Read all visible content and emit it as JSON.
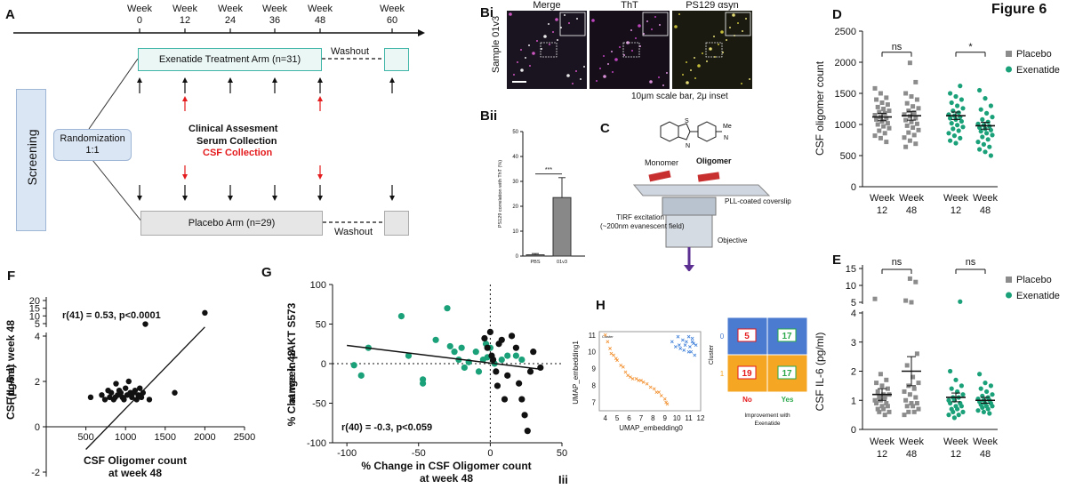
{
  "figure_title": "Figure 6",
  "panels": {
    "A": {
      "letter": "A",
      "weeks": [
        "Week\n0",
        "Week\n12",
        "Week\n24",
        "Week\n36",
        "Week\n48",
        "Week\n60"
      ],
      "treatment_arm": "Exenatide Treatment Arm (n=31)",
      "placebo_arm": "Placebo Arm (n=29)",
      "washout_top": "Washout",
      "washout_bottom": "Washout",
      "screening": "Screening",
      "randomization": "Randomization\n1:1",
      "clinical": "Clinical Assesment",
      "serum": "Serum Collection",
      "csf": "CSF Collection"
    },
    "Bi": {
      "letter": "Bi",
      "sample": "Sample 01v3",
      "headers": [
        "Merge",
        "ThT",
        "PS129 αsyn"
      ],
      "scale_note": "10μm scale bar, 2μ inset"
    },
    "Bii": {
      "letter": "Bii",
      "ylabel": "PS129 correlation with ThT (%)",
      "yticks": [
        "0",
        "10",
        "20",
        "30",
        "40",
        "50"
      ],
      "sig": "***",
      "categories": [
        "PBS",
        "01v3"
      ]
    },
    "C": {
      "letter": "C",
      "monomer": "Monomer",
      "oligomer": "Oligomer",
      "coverslip": "PLL-coated coverslip",
      "tirf": "TIRF excitation\n(~200nm evanescent field)",
      "objective": "Objective"
    },
    "D": {
      "letter": "D",
      "ylabel": "CSF oligomer count",
      "yticks": [
        "0",
        "500",
        "1000",
        "1500",
        "2000",
        "2500"
      ],
      "xticks": [
        "Week\n12",
        "Week\n48",
        "Week\n12",
        "Week\n48"
      ],
      "sig": [
        "ns",
        "*"
      ],
      "legend": [
        "Placebo",
        "Exenatide"
      ]
    },
    "E": {
      "letter": "E",
      "ylabel": "CSF IL-6 (pg/ml)",
      "yticks_low": [
        "0",
        "1",
        "2",
        "3",
        "4"
      ],
      "yticks_high": [
        "5",
        "10",
        "15"
      ],
      "xticks": [
        "Week\n12",
        "Week\n48",
        "Week\n12",
        "Week\n48"
      ],
      "sig": [
        "ns",
        "ns"
      ],
      "legend": [
        "Placebo",
        "Exenatide"
      ]
    },
    "F": {
      "letter": "F",
      "ylabel": "CSF IL-6 at week 48\n(pg/ml)",
      "xlabel": "CSF Oligomer count\nat week 48",
      "stat": "r(41) = 0.53, p<0.0001",
      "xticks": [
        "500",
        "1000",
        "1500",
        "2000",
        "2500"
      ],
      "yticks_low": [
        "-2",
        "0",
        "2",
        "4"
      ],
      "yticks_high": [
        "5",
        "10",
        "15",
        "20"
      ]
    },
    "G": {
      "letter": "G",
      "ylabel": "% Change in pAKT S573\nat week 48",
      "xlabel": "% Change in CSF Oligomer count\nat week 48",
      "stat": "r(40) = -0.3, p<0.059",
      "xticks": [
        "-100",
        "-50",
        "0",
        "50"
      ],
      "yticks": [
        "-100",
        "-50",
        "0",
        "50",
        "100"
      ]
    },
    "H": {
      "letter": "H",
      "ylabel": "UMAP_embedding1",
      "xlabel": "UMAP_embedding0",
      "xticks": [
        "4",
        "5",
        "6",
        "7",
        "8",
        "9",
        "10",
        "11",
        "12"
      ],
      "yticks": [
        "7",
        "8",
        "9",
        "10",
        "11"
      ],
      "legend_title": "Cluster",
      "cluster_label": "Cluster",
      "matrix": [
        [
          "5",
          "17"
        ],
        [
          "19",
          "17"
        ]
      ],
      "row_labels": [
        "0",
        "1"
      ],
      "col_labels": [
        "No",
        "Yes"
      ],
      "improvement": "Improvement with\nExenatide"
    },
    "Iii": {
      "letter": "Iii"
    }
  },
  "colors": {
    "placebo": "#8c8c8c",
    "exenatide": "#1aa179",
    "teal_box": "#3fb6a8",
    "grey_box": "#e6e6e6",
    "screen_box": "#dbe6f4",
    "red": "#e41a1c",
    "matrix_blue": "#4a7bd0",
    "matrix_orange": "#f5a623"
  },
  "chart_data": [
    {
      "id": "D",
      "type": "scatter",
      "title": "",
      "ylabel": "CSF oligomer count",
      "ylim": [
        0,
        2500
      ],
      "categories": [
        "Week 12",
        "Week 48",
        "Week 12",
        "Week 48"
      ],
      "series": [
        {
          "name": "Placebo",
          "group": "Week 12",
          "values": [
            1580,
            1500,
            1430,
            1400,
            1350,
            1320,
            1280,
            1250,
            1220,
            1200,
            1180,
            1150,
            1120,
            1100,
            1080,
            1050,
            1020,
            1000,
            970,
            940,
            900,
            860,
            820,
            780,
            720
          ]
        },
        {
          "name": "Placebo",
          "group": "Week 48",
          "values": [
            1990,
            1680,
            1500,
            1450,
            1400,
            1340,
            1290,
            1260,
            1220,
            1190,
            1160,
            1130,
            1100,
            1070,
            1040,
            1010,
            980,
            950,
            910,
            870,
            830,
            790,
            740,
            690,
            640
          ]
        },
        {
          "name": "Exenatide",
          "group": "Week 12",
          "values": [
            1620,
            1500,
            1450,
            1400,
            1350,
            1300,
            1260,
            1220,
            1190,
            1160,
            1140,
            1120,
            1100,
            1080,
            1050,
            1020,
            990,
            960,
            930,
            900,
            860,
            820,
            780,
            740,
            700
          ]
        },
        {
          "name": "Exenatide",
          "group": "Week 48",
          "values": [
            1550,
            1420,
            1300,
            1240,
            1180,
            1120,
            1080,
            1040,
            1010,
            990,
            970,
            950,
            930,
            910,
            890,
            860,
            830,
            800,
            760,
            720,
            680,
            640,
            600,
            560,
            500
          ]
        }
      ],
      "means": [
        1120,
        1140,
        1140,
        980
      ],
      "sem": [
        60,
        70,
        60,
        55
      ]
    },
    {
      "id": "E",
      "type": "scatter",
      "title": "",
      "ylabel": "CSF IL-6 (pg/ml)",
      "categories": [
        "Week 12",
        "Week 48",
        "Week 12",
        "Week 48"
      ],
      "series": [
        {
          "name": "Placebo",
          "group": "Week 12",
          "values": [
            6.0,
            1.9,
            1.7,
            1.6,
            1.5,
            1.4,
            1.3,
            1.2,
            1.2,
            1.1,
            1.1,
            1.0,
            1.0,
            0.9,
            0.9,
            0.8,
            0.8,
            0.7,
            0.7,
            0.6,
            0.6,
            0.5
          ]
        },
        {
          "name": "Placebo",
          "group": "Week 48",
          "values": [
            12.0,
            11.0,
            5.5,
            5.0,
            2.6,
            2.2,
            1.8,
            1.6,
            1.5,
            1.4,
            1.3,
            1.2,
            1.1,
            1.0,
            0.9,
            0.9,
            0.8,
            0.8,
            0.7,
            0.6,
            0.6,
            0.5
          ]
        },
        {
          "name": "Exenatide",
          "group": "Week 12",
          "values": [
            5.2,
            2.0,
            1.7,
            1.5,
            1.4,
            1.3,
            1.2,
            1.1,
            1.1,
            1.0,
            1.0,
            0.9,
            0.9,
            0.8,
            0.8,
            0.7,
            0.7,
            0.6,
            0.6,
            0.5,
            0.5,
            0.4
          ]
        },
        {
          "name": "Exenatide",
          "group": "Week 48",
          "values": [
            1.9,
            1.6,
            1.5,
            1.4,
            1.3,
            1.2,
            1.15,
            1.1,
            1.05,
            1.0,
            1.0,
            0.95,
            0.9,
            0.9,
            0.85,
            0.8,
            0.8,
            0.75,
            0.7,
            0.65,
            0.6,
            0.55
          ]
        }
      ],
      "means": [
        1.2,
        2.0,
        1.1,
        1.0
      ],
      "sem": [
        0.2,
        0.5,
        0.15,
        0.1
      ]
    },
    {
      "id": "Bii",
      "type": "bar",
      "categories": [
        "PBS",
        "01v3"
      ],
      "values": [
        0.5,
        23.5
      ],
      "errors": [
        0.5,
        8
      ],
      "ylim": [
        0,
        50
      ]
    },
    {
      "id": "F",
      "type": "scatter",
      "xlabel": "CSF Oligomer count at week 48",
      "ylabel": "CSF IL-6 at week 48 (pg/ml)",
      "xlim": [
        0,
        2500
      ],
      "x": [
        560,
        700,
        740,
        780,
        800,
        820,
        850,
        870,
        880,
        900,
        920,
        940,
        960,
        980,
        1000,
        1020,
        1040,
        1060,
        1080,
        1100,
        1120,
        1140,
        1160,
        1180,
        1200,
        1220,
        1250,
        1300,
        1620,
        2000
      ],
      "y": [
        1.3,
        1.4,
        1.2,
        1.6,
        1.3,
        1.5,
        1.2,
        1.3,
        1.9,
        1.4,
        1.6,
        1.5,
        1.3,
        1.2,
        1.7,
        1.4,
        2.0,
        1.5,
        1.3,
        1.5,
        1.6,
        1.2,
        1.4,
        1.7,
        1.3,
        1.5,
        4.7,
        1.2,
        1.5,
        12.0
      ],
      "fit": {
        "x": [
          500,
          2000
        ],
        "y": [
          -1.0,
          4.4
        ]
      }
    },
    {
      "id": "G",
      "type": "scatter",
      "xlabel": "% Change in CSF Oligomer count at week 48",
      "ylabel": "% Change in pAKT S573 at week 48",
      "xlim": [
        -110,
        50
      ],
      "ylim": [
        -100,
        100
      ],
      "series": [
        {
          "name": "Exenatide",
          "x": [
            -95,
            -90,
            -85,
            -62,
            -57,
            -47,
            -47,
            -38,
            -30,
            -28,
            -25,
            -22,
            -20,
            -18,
            -15,
            -10,
            -8,
            -5,
            -3,
            -2,
            0,
            3,
            8,
            12,
            18,
            22
          ],
          "y": [
            -2,
            -15,
            20,
            60,
            10,
            -20,
            -25,
            30,
            70,
            22,
            15,
            5,
            20,
            -5,
            2,
            15,
            -10,
            5,
            25,
            8,
            20,
            0,
            5,
            10,
            10,
            5
          ]
        },
        {
          "name": "Placebo",
          "x": [
            -4,
            -2,
            0,
            1,
            2,
            4,
            5,
            6,
            8,
            10,
            12,
            15,
            18,
            20,
            22,
            24,
            26,
            28,
            30,
            35
          ],
          "y": [
            32,
            20,
            40,
            10,
            5,
            -10,
            -28,
            25,
            30,
            -45,
            -15,
            35,
            20,
            -25,
            -45,
            -65,
            -85,
            -10,
            15,
            -5
          ]
        }
      ],
      "fit": {
        "x": [
          -100,
          35
        ],
        "y": [
          23,
          -7
        ]
      }
    },
    {
      "id": "H",
      "type": "scatter",
      "xlabel": "UMAP_embedding0",
      "ylabel": "UMAP_embedding1",
      "xlim": [
        3.5,
        12
      ],
      "ylim": [
        6.5,
        11.2
      ],
      "series": [
        {
          "name": "0",
          "x": [
            9.6,
            9.9,
            10.1,
            10.3,
            10.5,
            10.6,
            10.8,
            11.0,
            11.1,
            11.2,
            11.3,
            11.4,
            11.5,
            11.6,
            10.2,
            10.7,
            11.0,
            11.3
          ],
          "y": [
            10.6,
            10.3,
            10.9,
            10.2,
            10.7,
            10.1,
            10.6,
            10.9,
            10.3,
            10.0,
            10.8,
            10.5,
            9.8,
            10.4,
            10.4,
            10.4,
            10.0,
            10.6
          ]
        },
        {
          "name": "1",
          "x": [
            4.0,
            4.2,
            4.4,
            4.5,
            4.7,
            4.9,
            5.0,
            5.3,
            5.5,
            5.7,
            5.9,
            6.1,
            6.3,
            6.6,
            6.8,
            7.0,
            7.2,
            7.5,
            7.8,
            8.1,
            8.3,
            8.5,
            8.7,
            9.0,
            9.1,
            9.2
          ],
          "y": [
            11.0,
            10.6,
            10.2,
            9.9,
            9.8,
            9.6,
            9.5,
            9.2,
            9.1,
            8.8,
            8.6,
            8.5,
            8.4,
            8.4,
            8.3,
            8.3,
            8.2,
            8.1,
            7.9,
            7.8,
            7.6,
            7.6,
            7.4,
            7.2,
            7.0,
            6.9
          ]
        }
      ]
    }
  ]
}
